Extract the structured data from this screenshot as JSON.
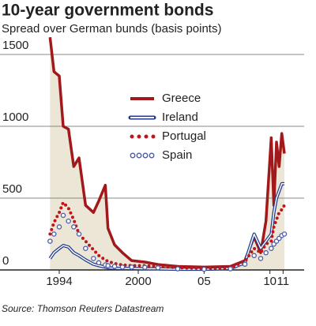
{
  "chart_data": {
    "type": "line",
    "title": "10-year government bonds",
    "subtitle": "Spread over German bunds (basis points)",
    "source": "Source: Thomson Reuters Datastream",
    "x": [
      1993.3,
      1993.6,
      1994,
      1994.3,
      1994.7,
      1995.1,
      1995.5,
      1996,
      1996.6,
      1997,
      1997.5,
      1997.7,
      1998.2,
      1998.8,
      1999.5,
      2000.5,
      2001.5,
      2003,
      2005,
      2007,
      2008.1,
      2008.8,
      2009.3,
      2009.7,
      2010.1,
      2010.3,
      2010.5,
      2010.7,
      2010.9,
      2011.1
    ],
    "series": [
      {
        "name": "Greece",
        "color": "#a3191b",
        "style": "solid",
        "fill": "#ece6d6",
        "values": [
          1620,
          1380,
          1350,
          1000,
          980,
          720,
          780,
          450,
          400,
          480,
          590,
          290,
          175,
          120,
          65,
          55,
          38,
          25,
          20,
          25,
          65,
          230,
          120,
          340,
          920,
          450,
          890,
          720,
          950,
          810
        ]
      },
      {
        "name": "Ireland",
        "color": "#1f3a8f",
        "style": "double",
        "values": [
          80,
          120,
          150,
          170,
          160,
          120,
          100,
          70,
          40,
          30,
          20,
          15,
          12,
          10,
          10,
          8,
          8,
          5,
          5,
          10,
          50,
          250,
          150,
          200,
          250,
          400,
          500,
          550,
          600,
          600
        ]
      },
      {
        "name": "Portugal",
        "color": "#c0161b",
        "style": "dotted",
        "values": [
          250,
          330,
          400,
          470,
          430,
          350,
          250,
          200,
          140,
          100,
          70,
          60,
          45,
          35,
          30,
          30,
          25,
          15,
          10,
          15,
          60,
          150,
          120,
          180,
          200,
          300,
          350,
          400,
          420,
          450
        ]
      },
      {
        "name": "Spain",
        "color": "#4a5aa8",
        "style": "circles",
        "values": [
          200,
          250,
          300,
          380,
          340,
          300,
          250,
          150,
          80,
          50,
          35,
          30,
          25,
          20,
          20,
          18,
          15,
          8,
          5,
          8,
          40,
          100,
          80,
          120,
          150,
          180,
          200,
          220,
          240,
          250
        ]
      }
    ],
    "xlim": [
      1989.5,
      2012.6
    ],
    "xticks": [
      1994,
      2000,
      {
        "value": 2005,
        "label": "05"
      },
      {
        "value": 2010,
        "label": "10"
      },
      {
        "value": 2011,
        "label": "11"
      }
    ],
    "ylim": [
      0,
      1640
    ],
    "yticks": [
      0,
      500,
      1000,
      1500
    ],
    "grid": true
  }
}
